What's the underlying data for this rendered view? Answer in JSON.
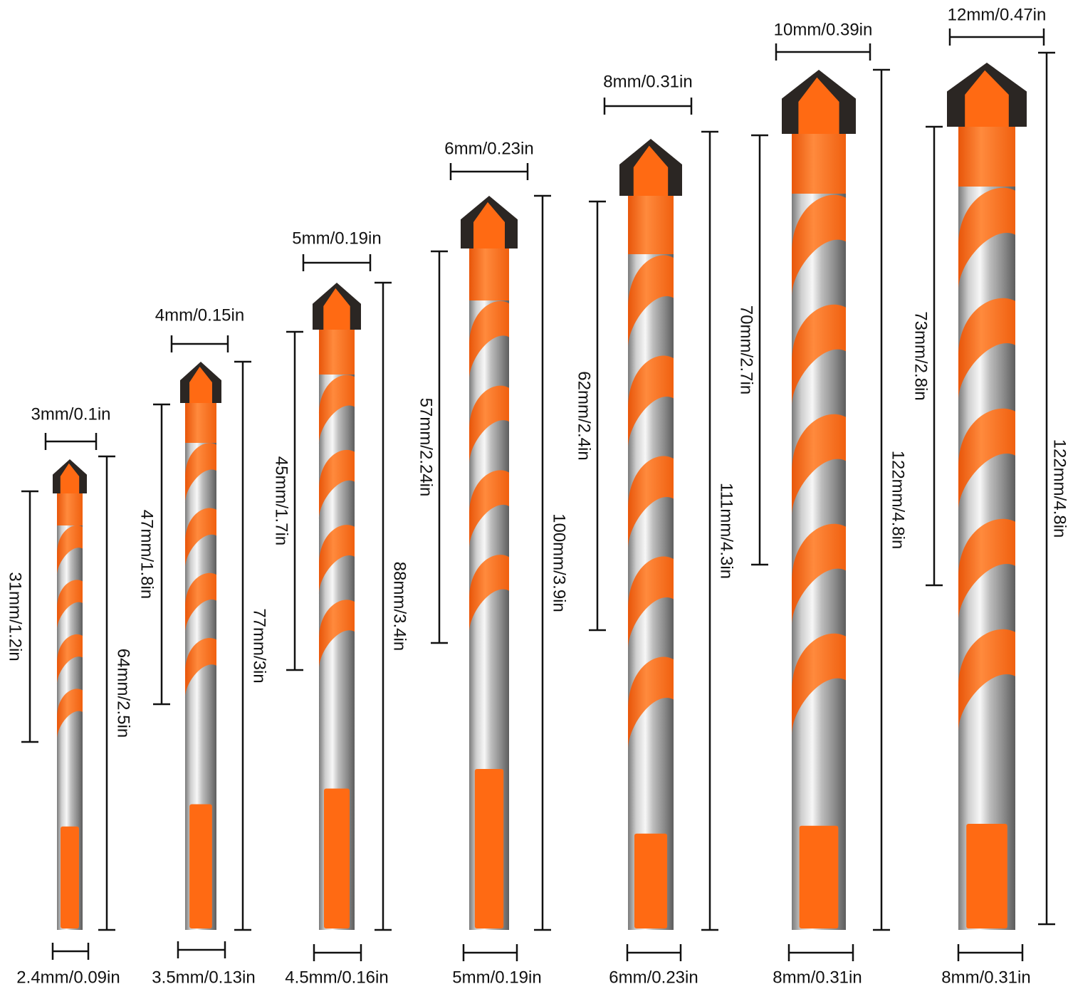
{
  "colors": {
    "orange": "#ff6a13",
    "orange_light": "#ff8a3d",
    "steel_light": "#f2f2f2",
    "steel_mid": "#b9b9b9",
    "steel_dark": "#6f6f6f",
    "carbide": "#2b2623",
    "line": "#111111",
    "background": "#ffffff"
  },
  "bits": [
    {
      "tip_width": "3mm/0.1in",
      "flute_length": "31mm/1.2in",
      "total_length": "64mm/2.5in",
      "shank_diameter": "2.4mm/0.09in"
    },
    {
      "tip_width": "4mm/0.15in",
      "flute_length": "47mm/1.8in",
      "total_length": "77mm/3in",
      "shank_diameter": "3.5mm/0.13in"
    },
    {
      "tip_width": "5mm/0.19in",
      "flute_length": "45mm/1.7in",
      "total_length": "88mm/3.4in",
      "shank_diameter": "4.5mm/0.16in"
    },
    {
      "tip_width": "6mm/0.23in",
      "flute_length": "57mm/2.24in",
      "total_length": "100mm/3.9in",
      "shank_diameter": "5mm/0.19in"
    },
    {
      "tip_width": "8mm/0.31in",
      "flute_length": "62mm/2.4in",
      "total_length": "111mm/4.3in",
      "shank_diameter": "6mm/0.23in"
    },
    {
      "tip_width": "10mm/0.39in",
      "flute_length": "70mm/2.7in",
      "total_length": "122mm/4.8in",
      "shank_diameter": "8mm/0.31in"
    },
    {
      "tip_width": "12mm/0.47in",
      "flute_length": "73mm/2.8in",
      "total_length": "122mm/4.8in",
      "shank_diameter": "8mm/0.31in"
    }
  ]
}
